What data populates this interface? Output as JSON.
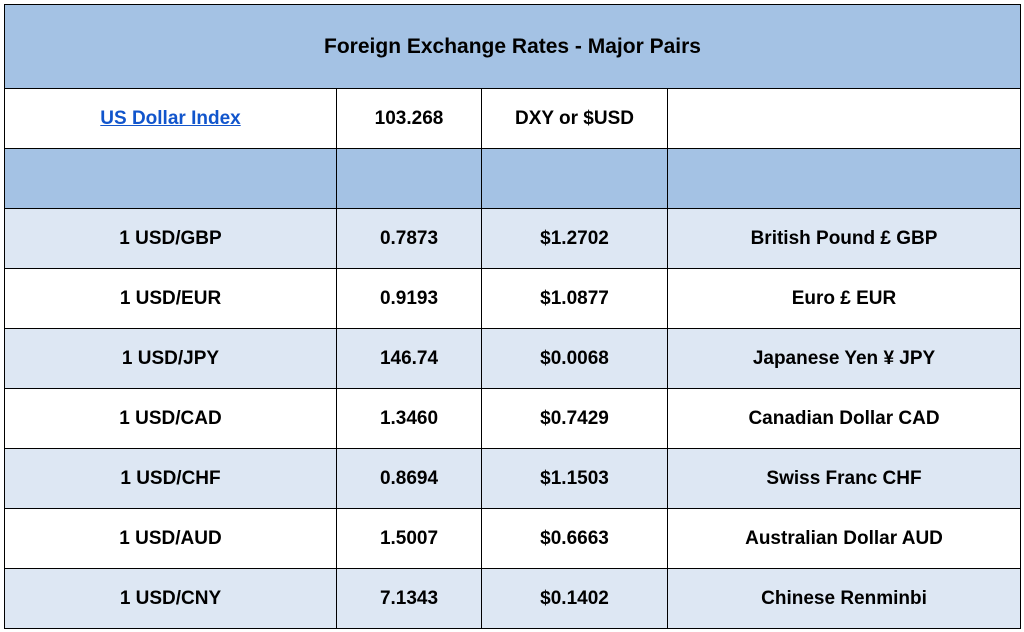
{
  "title": "Foreign Exchange Rates - Major Pairs",
  "index": {
    "label": "US Dollar Index",
    "value": "103.268",
    "ticker": "DXY or $USD",
    "note": ""
  },
  "spacer": [
    "",
    "",
    "",
    ""
  ],
  "rows": [
    {
      "pair": "1 USD/GBP",
      "rate": "0.7873",
      "inverse": "$1.2702",
      "currency": "British Pound £ GBP"
    },
    {
      "pair": "1 USD/EUR",
      "rate": "0.9193",
      "inverse": "$1.0877",
      "currency": "Euro £ EUR"
    },
    {
      "pair": "1 USD/JPY",
      "rate": "146.74",
      "inverse": "$0.0068",
      "currency": "Japanese Yen ¥ JPY"
    },
    {
      "pair": "1 USD/CAD",
      "rate": "1.3460",
      "inverse": "$0.7429",
      "currency": "Canadian Dollar CAD"
    },
    {
      "pair": "1 USD/CHF",
      "rate": "0.8694",
      "inverse": "$1.1503",
      "currency": "Swiss Franc CHF"
    },
    {
      "pair": "1 USD/AUD",
      "rate": "1.5007",
      "inverse": "$0.6663",
      "currency": "Australian Dollar AUD"
    },
    {
      "pair": "1 USD/CNY",
      "rate": "7.1343",
      "inverse": "$0.1402",
      "currency": "Chinese Renminbi"
    }
  ],
  "colors": {
    "header_bg": "#a4c2e4",
    "shaded_row_bg": "#dde7f3",
    "plain_row_bg": "#ffffff",
    "link": "#1155cc"
  }
}
